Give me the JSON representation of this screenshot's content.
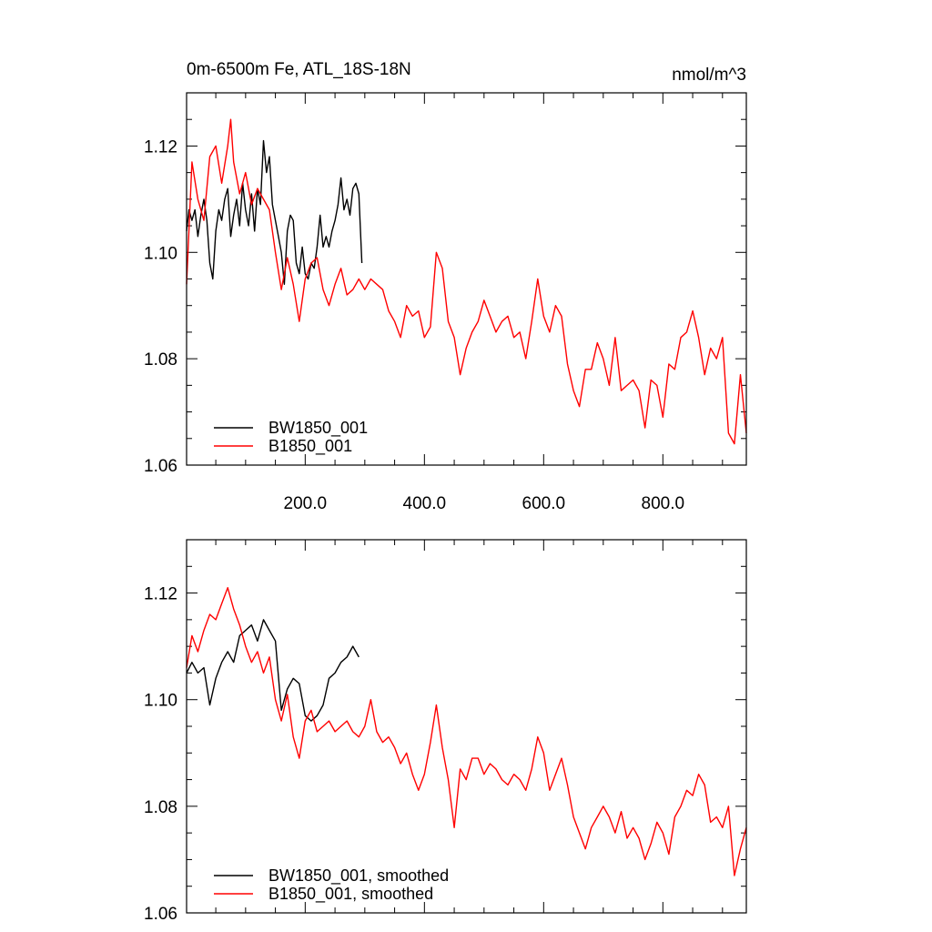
{
  "colors": {
    "bw": "#000000",
    "b": "#ff0000"
  },
  "chart_data": [
    {
      "type": "line",
      "title": "0m-6500m Fe, ATL_18S-18N",
      "units": "nmol/m^3",
      "xlim": [
        1,
        940
      ],
      "ylim": [
        1.06,
        1.13
      ],
      "xticks": [
        200,
        400,
        600,
        800
      ],
      "xtick_labels": [
        "200.0",
        "400.0",
        "600.0",
        "800.0"
      ],
      "yticks": [
        1.06,
        1.08,
        1.1,
        1.12
      ],
      "ytick_labels": [
        "1.06",
        "1.08",
        "1.10",
        "1.12"
      ],
      "legend_position": "bottom-left",
      "series": [
        {
          "name": "BW1850_001",
          "color": "#000000",
          "x": [
            1,
            5,
            10,
            15,
            20,
            25,
            30,
            35,
            40,
            45,
            50,
            55,
            60,
            65,
            70,
            75,
            80,
            85,
            90,
            95,
            100,
            105,
            110,
            115,
            120,
            125,
            130,
            135,
            140,
            145,
            150,
            155,
            160,
            165,
            170,
            175,
            180,
            185,
            190,
            195,
            200,
            205,
            210,
            215,
            220,
            225,
            230,
            235,
            240,
            245,
            250,
            255,
            260,
            265,
            270,
            275,
            280,
            285,
            290,
            295
          ],
          "y": [
            1.104,
            1.108,
            1.106,
            1.108,
            1.103,
            1.107,
            1.11,
            1.106,
            1.098,
            1.095,
            1.104,
            1.108,
            1.106,
            1.11,
            1.112,
            1.103,
            1.107,
            1.11,
            1.105,
            1.113,
            1.108,
            1.105,
            1.111,
            1.104,
            1.112,
            1.109,
            1.121,
            1.115,
            1.118,
            1.109,
            1.106,
            1.103,
            1.1,
            1.094,
            1.104,
            1.107,
            1.106,
            1.098,
            1.096,
            1.101,
            1.096,
            1.095,
            1.098,
            1.097,
            1.101,
            1.107,
            1.101,
            1.103,
            1.101,
            1.104,
            1.106,
            1.109,
            1.114,
            1.108,
            1.11,
            1.107,
            1.112,
            1.113,
            1.111,
            1.098
          ]
        },
        {
          "name": "B1850_001",
          "color": "#ff0000",
          "x": [
            1,
            10,
            20,
            30,
            40,
            50,
            60,
            70,
            75,
            80,
            90,
            100,
            110,
            120,
            130,
            140,
            150,
            160,
            170,
            180,
            190,
            200,
            210,
            220,
            230,
            240,
            250,
            260,
            270,
            280,
            290,
            300,
            310,
            320,
            330,
            340,
            350,
            360,
            370,
            380,
            390,
            400,
            410,
            420,
            430,
            440,
            450,
            460,
            470,
            480,
            490,
            500,
            510,
            520,
            530,
            540,
            550,
            560,
            570,
            580,
            590,
            600,
            610,
            620,
            630,
            640,
            650,
            660,
            670,
            680,
            690,
            700,
            710,
            720,
            730,
            740,
            750,
            760,
            770,
            780,
            790,
            800,
            810,
            820,
            830,
            840,
            850,
            860,
            870,
            880,
            890,
            900,
            910,
            920,
            930,
            940
          ],
          "y": [
            1.094,
            1.117,
            1.11,
            1.106,
            1.118,
            1.12,
            1.113,
            1.12,
            1.125,
            1.117,
            1.111,
            1.115,
            1.109,
            1.112,
            1.11,
            1.108,
            1.1,
            1.093,
            1.099,
            1.094,
            1.087,
            1.095,
            1.098,
            1.099,
            1.093,
            1.09,
            1.094,
            1.097,
            1.092,
            1.093,
            1.095,
            1.093,
            1.095,
            1.094,
            1.093,
            1.089,
            1.087,
            1.084,
            1.09,
            1.088,
            1.089,
            1.084,
            1.086,
            1.1,
            1.097,
            1.087,
            1.084,
            1.077,
            1.082,
            1.085,
            1.087,
            1.091,
            1.088,
            1.085,
            1.087,
            1.088,
            1.084,
            1.085,
            1.08,
            1.087,
            1.095,
            1.088,
            1.085,
            1.09,
            1.088,
            1.079,
            1.074,
            1.071,
            1.078,
            1.078,
            1.083,
            1.08,
            1.075,
            1.084,
            1.074,
            1.075,
            1.076,
            1.074,
            1.067,
            1.076,
            1.075,
            1.069,
            1.079,
            1.078,
            1.084,
            1.085,
            1.089,
            1.084,
            1.077,
            1.082,
            1.08,
            1.084,
            1.066,
            1.064,
            1.077,
            1.066
          ]
        }
      ]
    },
    {
      "type": "line",
      "title": "",
      "xlim": [
        1,
        940
      ],
      "ylim": [
        1.06,
        1.13
      ],
      "yticks": [
        1.06,
        1.08,
        1.1,
        1.12
      ],
      "ytick_labels": [
        "1.06",
        "1.08",
        "1.10",
        "1.12"
      ],
      "xticks": [
        200,
        400,
        600,
        800
      ],
      "legend_position": "bottom-left",
      "series": [
        {
          "name": "BW1850_001, smoothed",
          "color": "#000000",
          "x": [
            1,
            10,
            20,
            30,
            40,
            50,
            60,
            70,
            80,
            90,
            100,
            110,
            120,
            130,
            140,
            150,
            160,
            170,
            180,
            190,
            200,
            210,
            220,
            230,
            240,
            250,
            260,
            270,
            280,
            290
          ],
          "y": [
            1.105,
            1.107,
            1.105,
            1.106,
            1.099,
            1.104,
            1.107,
            1.109,
            1.107,
            1.112,
            1.113,
            1.114,
            1.111,
            1.115,
            1.113,
            1.111,
            1.098,
            1.102,
            1.104,
            1.103,
            1.097,
            1.096,
            1.097,
            1.099,
            1.104,
            1.105,
            1.107,
            1.108,
            1.11,
            1.108
          ]
        },
        {
          "name": "B1850_001, smoothed",
          "color": "#ff0000",
          "x": [
            1,
            10,
            20,
            30,
            40,
            50,
            60,
            70,
            80,
            90,
            100,
            110,
            120,
            130,
            140,
            150,
            160,
            170,
            180,
            190,
            200,
            210,
            220,
            230,
            240,
            250,
            260,
            270,
            280,
            290,
            300,
            310,
            320,
            330,
            340,
            350,
            360,
            370,
            380,
            390,
            400,
            410,
            420,
            430,
            440,
            450,
            460,
            470,
            480,
            490,
            500,
            510,
            520,
            530,
            540,
            550,
            560,
            570,
            580,
            590,
            600,
            610,
            620,
            630,
            640,
            650,
            660,
            670,
            680,
            690,
            700,
            710,
            720,
            730,
            740,
            750,
            760,
            770,
            780,
            790,
            800,
            810,
            820,
            830,
            840,
            850,
            860,
            870,
            880,
            890,
            900,
            910,
            920,
            930,
            940
          ],
          "y": [
            1.106,
            1.112,
            1.109,
            1.113,
            1.116,
            1.115,
            1.118,
            1.121,
            1.117,
            1.114,
            1.11,
            1.107,
            1.109,
            1.105,
            1.108,
            1.1,
            1.096,
            1.101,
            1.093,
            1.089,
            1.096,
            1.098,
            1.094,
            1.095,
            1.096,
            1.094,
            1.095,
            1.096,
            1.094,
            1.093,
            1.095,
            1.1,
            1.094,
            1.092,
            1.093,
            1.091,
            1.088,
            1.09,
            1.086,
            1.083,
            1.086,
            1.092,
            1.099,
            1.091,
            1.085,
            1.076,
            1.087,
            1.085,
            1.089,
            1.089,
            1.086,
            1.088,
            1.087,
            1.085,
            1.084,
            1.086,
            1.085,
            1.083,
            1.087,
            1.093,
            1.09,
            1.083,
            1.086,
            1.089,
            1.084,
            1.078,
            1.075,
            1.072,
            1.076,
            1.078,
            1.08,
            1.078,
            1.075,
            1.079,
            1.074,
            1.076,
            1.074,
            1.07,
            1.073,
            1.077,
            1.075,
            1.071,
            1.078,
            1.08,
            1.083,
            1.082,
            1.086,
            1.084,
            1.077,
            1.078,
            1.076,
            1.08,
            1.067,
            1.072,
            1.076
          ]
        }
      ]
    }
  ]
}
